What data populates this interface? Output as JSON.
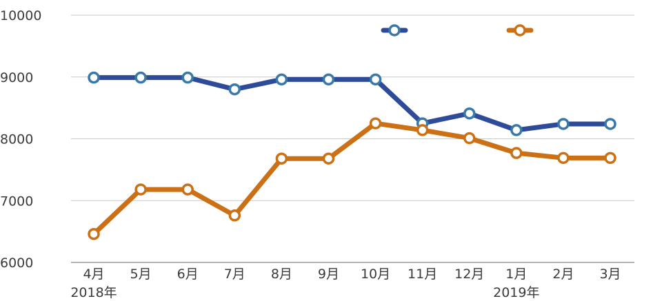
{
  "chart_data": {
    "type": "line",
    "categories": [
      "4月",
      "5月",
      "6月",
      "7月",
      "8月",
      "9月",
      "10月",
      "11月",
      "12月",
      "1月",
      "2月",
      "3月"
    ],
    "year_labels": [
      {
        "category_index": 0,
        "text": "2018年"
      },
      {
        "category_index": 9,
        "text": "2019年"
      }
    ],
    "series": [
      {
        "color": "#2e4b9a",
        "marker_color": "#3a78a8",
        "values": [
          8990,
          8990,
          8990,
          8800,
          8960,
          8960,
          8960,
          8250,
          8410,
          8140,
          8240,
          8240
        ]
      },
      {
        "color": "#cc7016",
        "marker_color": "#cc7016",
        "values": [
          6460,
          7180,
          7180,
          6760,
          7680,
          7680,
          8250,
          8140,
          8010,
          7770,
          7690,
          7690
        ]
      }
    ],
    "ylim": [
      6000,
      10000
    ],
    "yticks": [
      6000,
      7000,
      8000,
      9000,
      10000
    ],
    "grid": true,
    "legend_position": "top-right",
    "title": "",
    "xlabel": "",
    "ylabel": ""
  }
}
